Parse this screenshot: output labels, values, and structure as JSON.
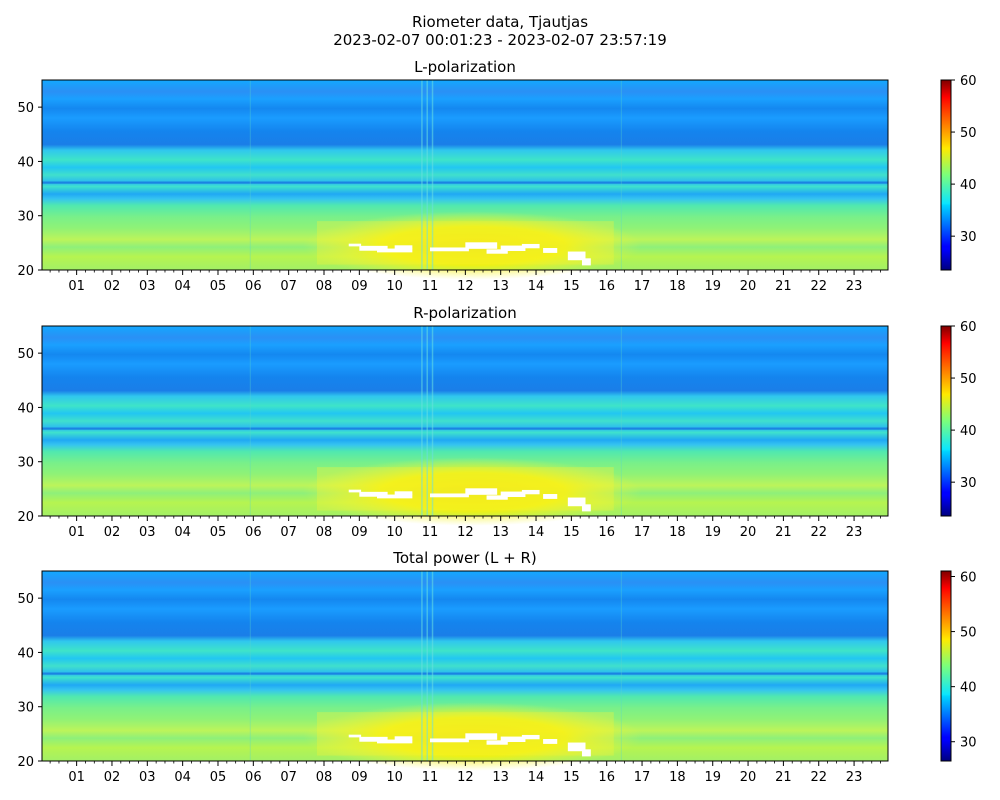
{
  "figure": {
    "title_line1": "Riometer data, Tjautjas",
    "title_line2": "2023-02-07 00:01:23 - 2023-02-07 23:57:19"
  },
  "chart_data": [
    {
      "type": "heatmap",
      "title": "L-polarization",
      "x_tick_labels": [
        "01",
        "02",
        "03",
        "04",
        "05",
        "06",
        "07",
        "08",
        "09",
        "10",
        "11",
        "12",
        "13",
        "14",
        "15",
        "16",
        "17",
        "18",
        "19",
        "20",
        "21",
        "22",
        "23"
      ],
      "x_range_hours": [
        0.02,
        23.96
      ],
      "y_ticks": [
        20,
        30,
        40,
        50
      ],
      "ylim": [
        20,
        55
      ],
      "colorbar": {
        "ticks": [
          30,
          40,
          50,
          60
        ],
        "range": [
          23.5,
          60
        ],
        "colormap": "jet"
      },
      "white_gaps": "saturated/missing values near 22–26 on y, hours 8–15.5"
    },
    {
      "type": "heatmap",
      "title": "R-polarization",
      "x_tick_labels": [
        "01",
        "02",
        "03",
        "04",
        "05",
        "06",
        "07",
        "08",
        "09",
        "10",
        "11",
        "12",
        "13",
        "14",
        "15",
        "16",
        "17",
        "18",
        "19",
        "20",
        "21",
        "22",
        "23"
      ],
      "x_range_hours": [
        0.02,
        23.96
      ],
      "y_ticks": [
        20,
        30,
        40,
        50
      ],
      "ylim": [
        20,
        55
      ],
      "colorbar": {
        "ticks": [
          30,
          40,
          50,
          60
        ],
        "range": [
          23.5,
          60
        ],
        "colormap": "jet"
      },
      "white_gaps": "saturated/missing values near 22–26 on y, hours 8–15.5"
    },
    {
      "type": "heatmap",
      "title": "Total power (L + R)",
      "x_tick_labels": [
        "01",
        "02",
        "03",
        "04",
        "05",
        "06",
        "07",
        "08",
        "09",
        "10",
        "11",
        "12",
        "13",
        "14",
        "15",
        "16",
        "17",
        "18",
        "19",
        "20",
        "21",
        "22",
        "23"
      ],
      "x_range_hours": [
        0.02,
        23.96
      ],
      "y_ticks": [
        20,
        30,
        40,
        50
      ],
      "ylim": [
        20,
        55
      ],
      "colorbar": {
        "ticks": [
          30,
          40,
          50,
          60
        ],
        "range": [
          26.5,
          61
        ],
        "colormap": "jet"
      },
      "white_gaps": "saturated/missing values near 22–26 on y, hours 8–15.5"
    }
  ]
}
